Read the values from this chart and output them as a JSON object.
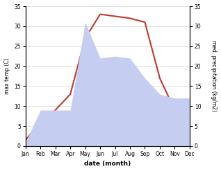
{
  "months": [
    "Jan",
    "Feb",
    "Mar",
    "Apr",
    "May",
    "Jun",
    "Jul",
    "Aug",
    "Sep",
    "Oct",
    "Nov",
    "Dec"
  ],
  "temperature": [
    1.5,
    6.0,
    9.0,
    13.0,
    27.0,
    33.0,
    32.5,
    32.0,
    31.0,
    17.0,
    9.0,
    1.5
  ],
  "precipitation": [
    1.0,
    9.0,
    9.0,
    9.0,
    31.0,
    22.0,
    22.5,
    22.0,
    17.0,
    13.0,
    12.0,
    12.0
  ],
  "temp_color": "#c0392b",
  "precip_color": "#c5cef0",
  "ylim_left": [
    0,
    35
  ],
  "ylim_right": [
    0,
    35
  ],
  "ylabel_left": "max temp (C)",
  "ylabel_right": "med. precipitation (kg/m2)",
  "xlabel": "date (month)",
  "bg_color": "#ffffff",
  "grid_color": "#d0d0d0",
  "yticks": [
    0,
    5,
    10,
    15,
    20,
    25,
    30,
    35
  ]
}
